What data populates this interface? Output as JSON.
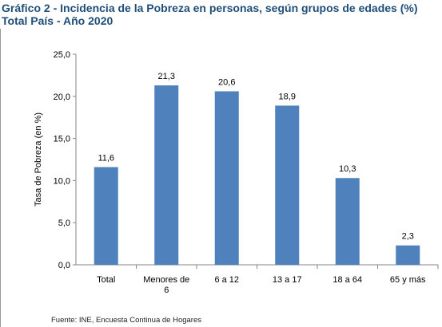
{
  "header": {
    "title_line1": "Gráfico 2 - Incidencia de la Pobreza en personas, según grupos de edades (%)",
    "title_line2": "Total País - Año 2020"
  },
  "footer": {
    "source": "Fuente: INE, Encuesta Continua de Hogares"
  },
  "colors": {
    "bar": "#4f81bd",
    "axis": "#868686",
    "title": "#1f4e79"
  },
  "chart_data": {
    "type": "bar",
    "categories": [
      "Total",
      "Menores de 6",
      "6 a 12",
      "13 a 17",
      "18 a 64",
      "65 y más"
    ],
    "category_lines": [
      [
        "Total"
      ],
      [
        "Menores de",
        "6"
      ],
      [
        "6 a 12"
      ],
      [
        "13 a 17"
      ],
      [
        "18 a 64"
      ],
      [
        "65 y más"
      ]
    ],
    "values": [
      11.6,
      21.3,
      20.6,
      18.9,
      10.3,
      2.3
    ],
    "value_labels": [
      "11,6",
      "21,3",
      "20,6",
      "18,9",
      "10,3",
      "2,3"
    ],
    "ylabel": "Tasa de Pobreza (en %)",
    "xlabel": "",
    "ylim": [
      0,
      25
    ],
    "yticks": [
      0,
      5,
      10,
      15,
      20,
      25
    ],
    "ytick_labels": [
      "0,0",
      "5,0",
      "10,0",
      "15,0",
      "20,0",
      "25,0"
    ],
    "grid": false,
    "legend": "none"
  }
}
